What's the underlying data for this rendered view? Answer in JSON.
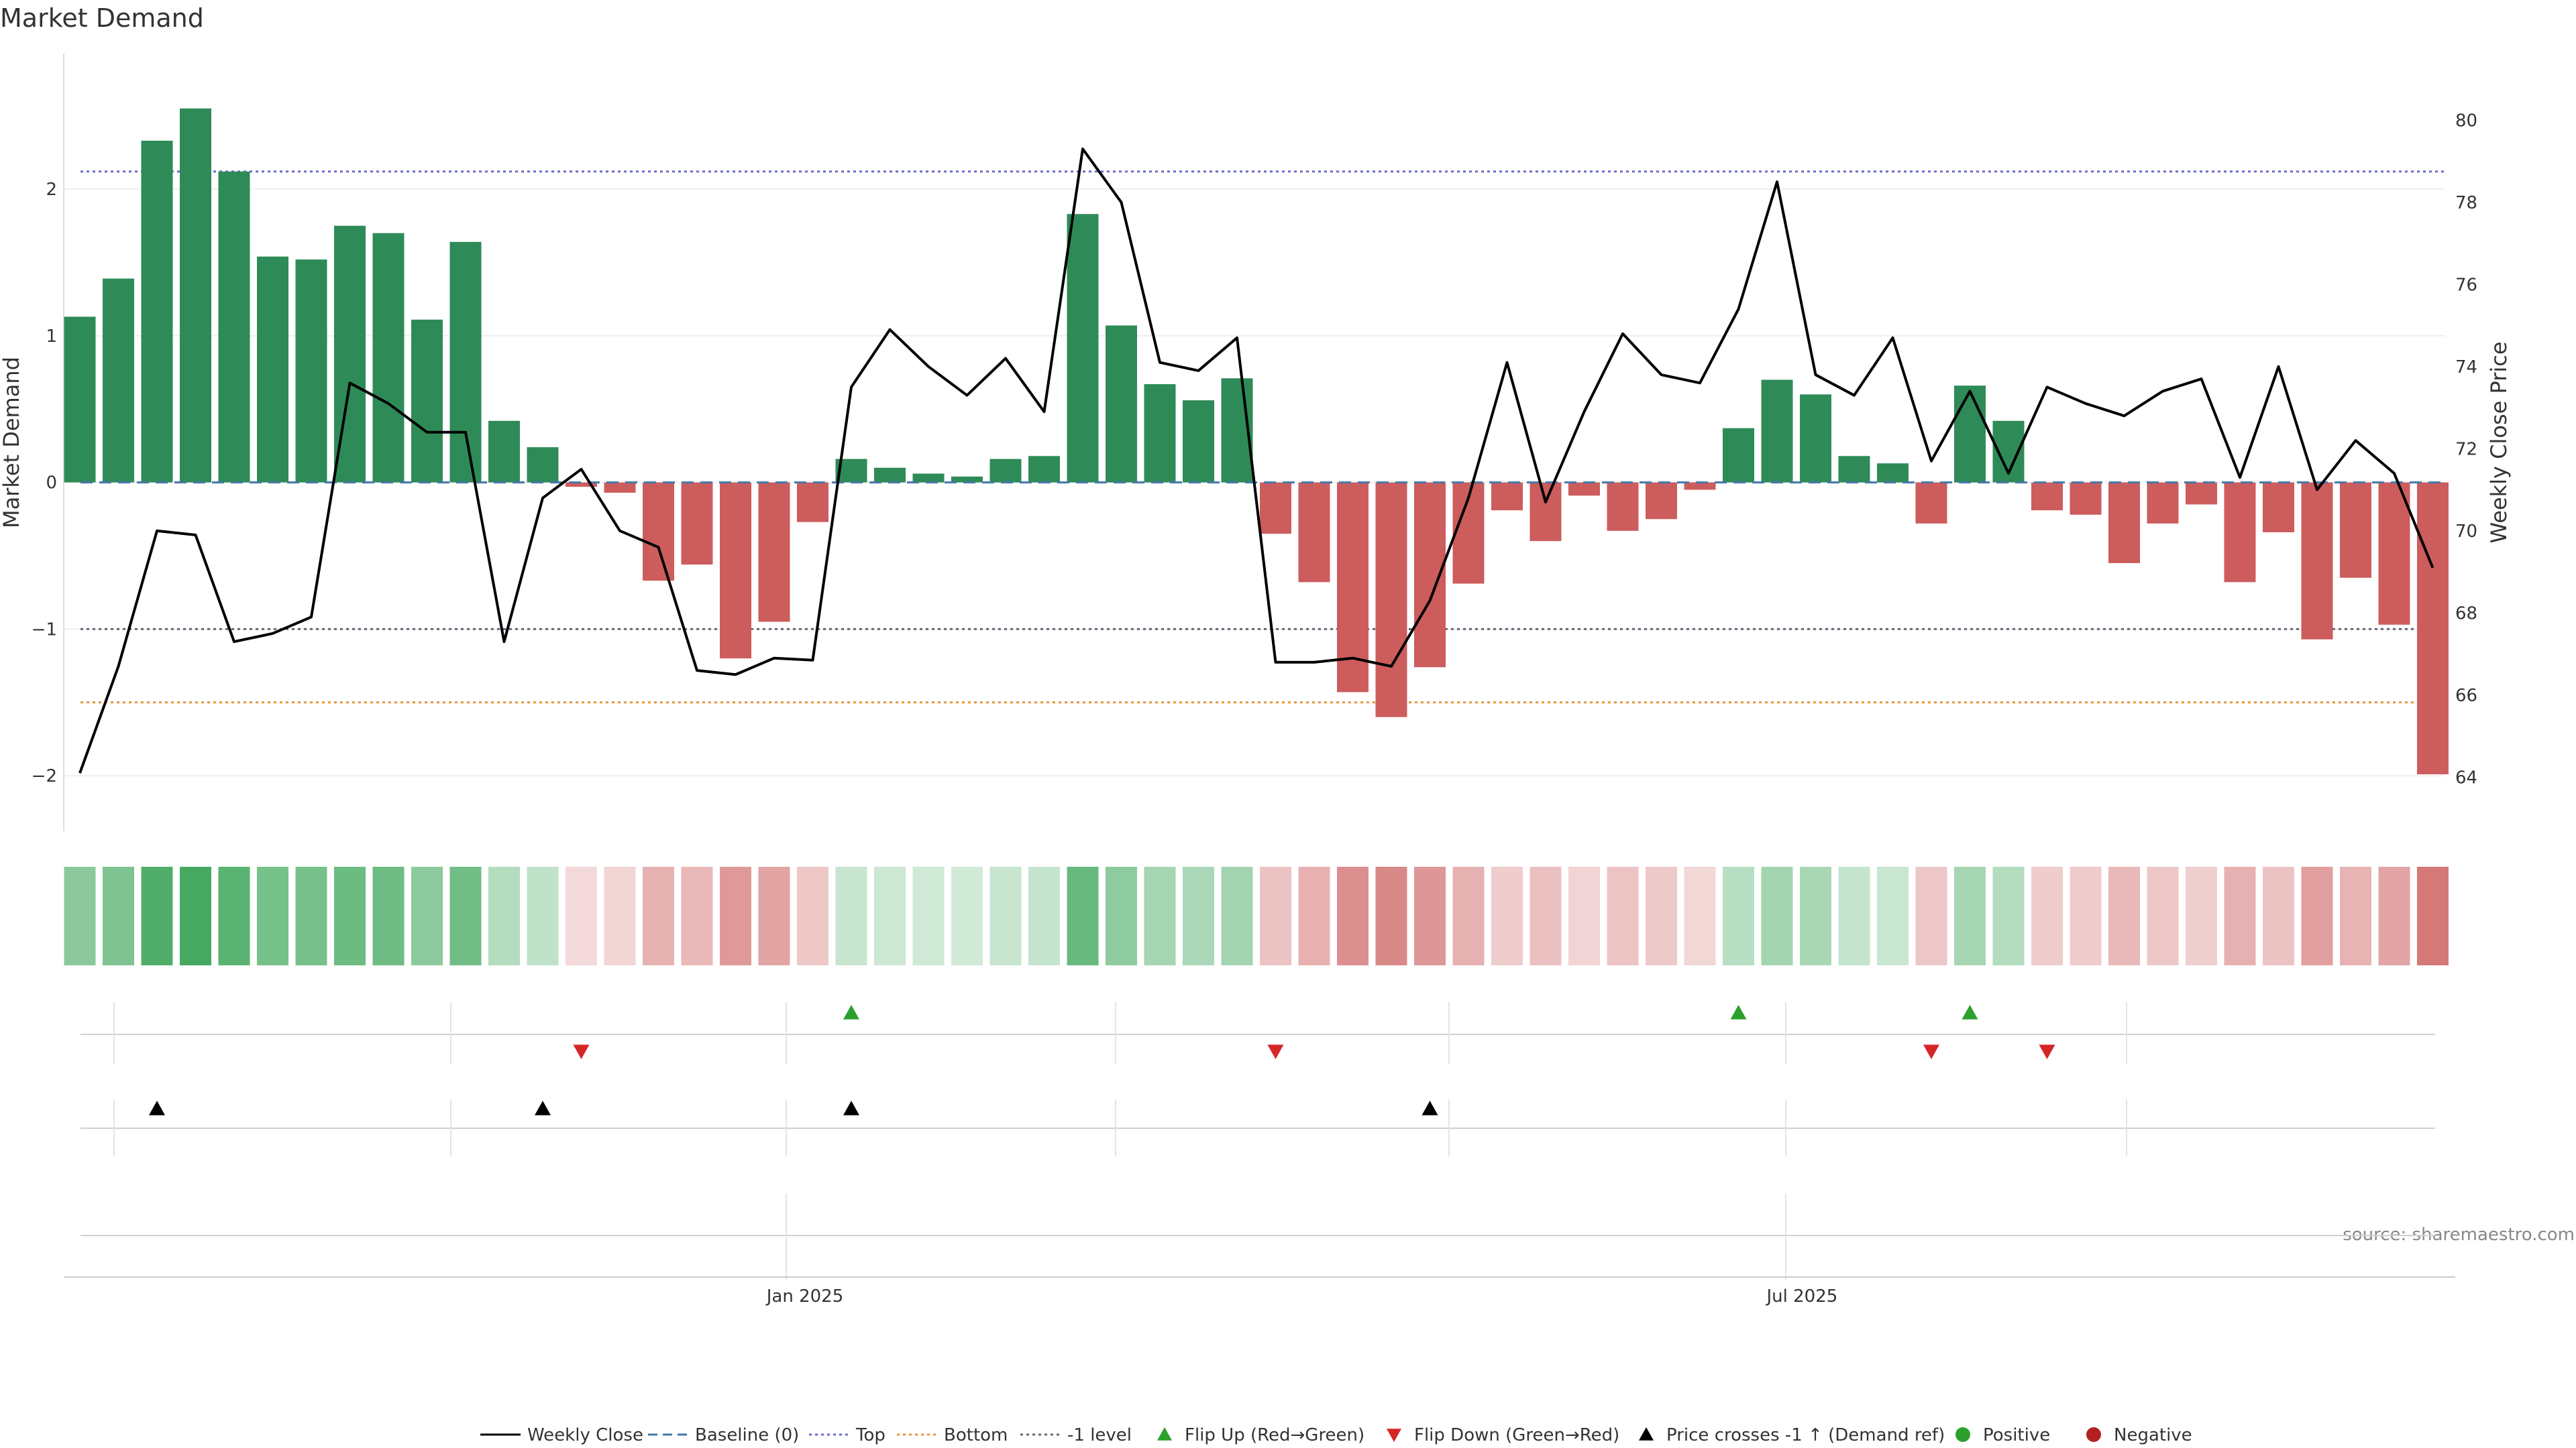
{
  "chart_data": {
    "type": "bar",
    "title": "Market Demand",
    "ylabel_left": "Market Demand",
    "ylabel_right": "Weekly Close Price",
    "left_ylim": [
      -2.15,
      2.75
    ],
    "right_ylim": [
      63.5,
      81.0
    ],
    "left_ticks": [
      -2,
      -1,
      0,
      1,
      2
    ],
    "left_tick_labels": [
      "−2",
      "−1",
      "0",
      "1",
      "2"
    ],
    "right_ticks": [
      64,
      66,
      68,
      70,
      72,
      74,
      76,
      78,
      80
    ],
    "right_tick_labels": [
      "64",
      "66",
      "68",
      "70",
      "72",
      "74",
      "76",
      "78",
      "80"
    ],
    "x_tick_labels": [
      {
        "label": "Jan 2025",
        "index": 18.8
      },
      {
        "label": "Jul 2025",
        "index": 44.65
      }
    ],
    "reference_lines": {
      "baseline": 0,
      "top": 2.12,
      "bottom": -1.5,
      "minus1_level": -1
    },
    "demand": [
      1.13,
      1.39,
      2.33,
      2.55,
      2.12,
      1.54,
      1.52,
      1.75,
      1.7,
      1.11,
      1.64,
      0.42,
      0.24,
      -0.03,
      -0.07,
      -0.67,
      -0.56,
      -1.2,
      -0.95,
      -0.27,
      0.16,
      0.1,
      0.06,
      0.04,
      0.16,
      0.18,
      1.83,
      1.07,
      0.67,
      0.56,
      0.71,
      -0.35,
      -0.68,
      -1.43,
      -1.6,
      -1.26,
      -0.69,
      -0.19,
      -0.4,
      -0.09,
      -0.33,
      -0.25,
      -0.05,
      0.37,
      0.7,
      0.6,
      0.18,
      0.13,
      -0.28,
      0.66,
      0.42,
      -0.19,
      -0.22,
      -0.55,
      -0.28,
      -0.15,
      -0.68,
      -0.34,
      -1.07,
      -0.65,
      -0.97,
      -1.99
    ],
    "weekly_close": [
      64.1,
      66.7,
      70.0,
      69.9,
      67.3,
      67.5,
      67.9,
      73.6,
      73.1,
      72.4,
      72.4,
      67.3,
      70.8,
      71.5,
      70.0,
      69.6,
      66.6,
      66.5,
      66.9,
      66.85,
      73.5,
      74.9,
      74.0,
      73.3,
      74.2,
      72.9,
      79.3,
      78.0,
      74.1,
      73.9,
      74.7,
      66.8,
      66.8,
      66.9,
      66.7,
      68.3,
      70.8,
      74.1,
      70.7,
      72.9,
      74.8,
      73.8,
      73.6,
      75.4,
      78.5,
      73.8,
      73.3,
      74.7,
      71.7,
      73.4,
      71.4,
      73.5,
      73.1,
      72.8,
      73.4,
      73.7,
      71.3,
      74.0,
      71.0,
      72.2,
      71.4,
      69.1
    ],
    "flip_up": [
      20,
      43,
      49
    ],
    "flip_down": [
      13,
      31,
      48,
      51
    ],
    "price_crosses": [
      2,
      12,
      20,
      35
    ],
    "legend": [
      {
        "label": "Weekly Close",
        "type": "line-solid"
      },
      {
        "label": "Baseline (0)",
        "type": "line-dashed"
      },
      {
        "label": "Top",
        "type": "line-dotted-blue"
      },
      {
        "label": "Bottom",
        "type": "line-dotted-orange"
      },
      {
        "label": "-1 level",
        "type": "line-dotted-gray"
      },
      {
        "label": "Flip Up (Red→Green)",
        "type": "triangle-up-green"
      },
      {
        "label": "Flip Down (Green→Red)",
        "type": "triangle-down-red"
      },
      {
        "label": "Price crosses -1 ↑ (Demand ref)",
        "type": "triangle-up-black"
      },
      {
        "label": "Positive",
        "type": "dot-green"
      },
      {
        "label": "Negative",
        "type": "dot-red"
      }
    ],
    "source": "source: sharemaestro.com"
  },
  "colors": {
    "positive_bar": "#2e8b57",
    "negative_bar": "#cd5c5c",
    "price_line": "#000000",
    "baseline": "#4477aa",
    "top": "#6b6bcf",
    "bottom": "#e8943a",
    "minus1": "#666677",
    "flip_up": "#2ca02c",
    "flip_down": "#d62728",
    "cross": "#000000",
    "positive_dot": "#2ca02c",
    "negative_dot": "#b22222"
  }
}
